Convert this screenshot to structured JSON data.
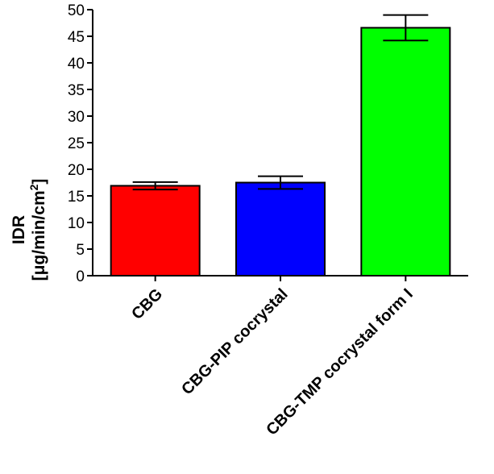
{
  "chart_data": {
    "type": "bar",
    "title": "",
    "xlabel": "",
    "ylabel_line1": "IDR",
    "ylabel_line2_prefix": "[μg/min/cm",
    "ylabel_line2_sup": "2",
    "ylabel_line2_suffix": "]",
    "ylim": [
      0,
      50
    ],
    "yticks": [
      0,
      5,
      10,
      15,
      20,
      25,
      30,
      35,
      40,
      45,
      50
    ],
    "categories": [
      "CBG",
      "CBG-PIP cocrystal",
      "CBG-TMP cocrystal form I"
    ],
    "values": [
      16.9,
      17.5,
      46.6
    ],
    "errors": [
      0.7,
      1.2,
      2.4
    ],
    "colors": [
      "#ff0000",
      "#0000ff",
      "#00ff00"
    ],
    "grid": false,
    "legend": "none"
  }
}
